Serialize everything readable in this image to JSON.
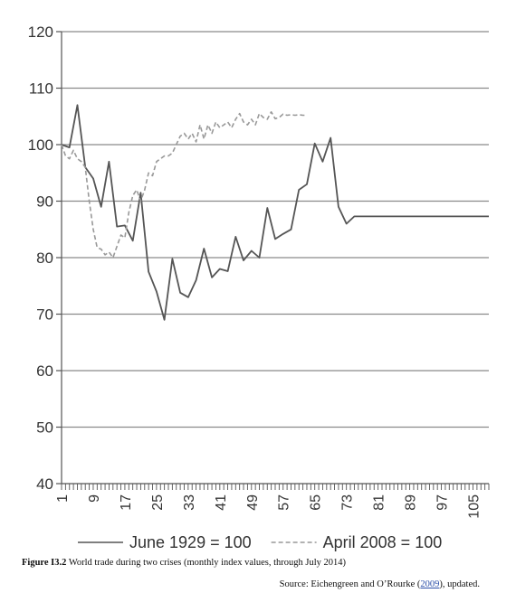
{
  "chart_data": {
    "type": "line",
    "ylim": [
      40,
      120
    ],
    "yticks": [
      40,
      50,
      60,
      70,
      80,
      90,
      100,
      110,
      120
    ],
    "xlim": [
      1,
      109
    ],
    "xticks": [
      1,
      9,
      17,
      25,
      33,
      41,
      49,
      57,
      65,
      73,
      81,
      89,
      97,
      105
    ],
    "grid": "horizontal",
    "legend_position": "bottom",
    "series": [
      {
        "name": "June 1929 = 100",
        "style": "solid",
        "color": "#555555",
        "x": [
          1,
          3,
          5,
          7,
          9,
          11,
          13,
          15,
          17,
          19,
          21,
          23,
          25,
          27,
          29,
          31,
          33,
          35,
          37,
          39,
          41,
          43,
          45,
          47,
          49,
          51,
          53,
          55,
          57,
          59,
          61,
          63,
          65,
          67,
          69,
          71,
          73,
          75,
          77,
          79,
          81,
          83,
          85,
          87,
          89,
          91,
          93,
          95,
          97,
          99,
          101,
          103,
          105,
          107,
          109
        ],
        "values": [
          100,
          99.5,
          107,
          96,
          94,
          89,
          97,
          85.5,
          85.7,
          83,
          91.5,
          77.5,
          74,
          69,
          79.8,
          73.8,
          73,
          76,
          81.6,
          76.5,
          78,
          77.6,
          83.7,
          79.5,
          81.2,
          80,
          88.8,
          83.3,
          84.2,
          85,
          92,
          93,
          100.2,
          97,
          101.2,
          89,
          86,
          87.3,
          87.3,
          87.3,
          87.3,
          87.3,
          87.3,
          87.3,
          87.3,
          87.3,
          87.3,
          87.3,
          87.3,
          87.3,
          87.3,
          87.3,
          87.3,
          87.3,
          87.3
        ]
      },
      {
        "name": "April 2008 = 100",
        "style": "dashed",
        "color": "#999999",
        "x": [
          1,
          2,
          3,
          4,
          5,
          6,
          7,
          8,
          9,
          10,
          11,
          12,
          13,
          14,
          15,
          16,
          17,
          18,
          19,
          20,
          21,
          22,
          23,
          24,
          25,
          26,
          27,
          28,
          29,
          30,
          31,
          32,
          33,
          34,
          35,
          36,
          37,
          38,
          39,
          40,
          41,
          42,
          43,
          44,
          45,
          46,
          47,
          48,
          49,
          50,
          51,
          52,
          53,
          54,
          55,
          56,
          57,
          58,
          59,
          60,
          61,
          62,
          63
        ],
        "values": [
          100,
          98,
          97.5,
          99,
          97.5,
          97,
          96,
          90,
          85,
          81.8,
          81.5,
          80.5,
          81,
          80,
          82,
          84,
          83.5,
          88,
          91,
          92,
          90,
          92,
          95,
          94.5,
          97,
          97.5,
          98,
          98,
          98.5,
          100,
          101.5,
          102,
          101,
          102,
          100.5,
          103.5,
          101,
          103.5,
          102,
          104,
          103,
          103.5,
          104,
          103,
          104.5,
          105.5,
          104,
          103.5,
          104.5,
          103.5,
          105.5,
          104.8,
          104.5,
          105.8,
          104.6,
          104.8,
          105.4,
          105.2,
          105.3,
          105.2,
          105.3,
          105.2,
          105.2
        ]
      }
    ]
  },
  "caption": {
    "label": "Figure I3.2",
    "text": " World trade during two crises (monthly index values, through July 2014)"
  },
  "source": {
    "prefix": "Source: Eichengreen and O’Rourke (",
    "link_text": "2009",
    "suffix": "), updated."
  }
}
